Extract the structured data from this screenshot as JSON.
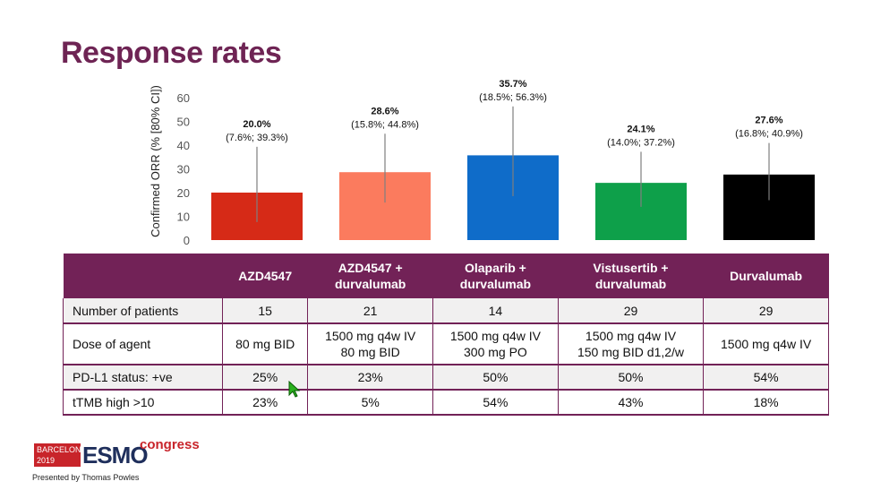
{
  "slide": {
    "title": "Response rates",
    "presenter": "Presented by Thomas Powles"
  },
  "logo": {
    "city": "BARCELONA",
    "year": "2019",
    "brand": "ESMO",
    "event": "congress"
  },
  "chart_data": {
    "type": "bar",
    "ylabel": "Confirmed ORR (% [80% CI])",
    "ylim": [
      0,
      60
    ],
    "yticks": [
      0,
      10,
      20,
      30,
      40,
      50,
      60
    ],
    "grid": false,
    "categories": [
      "AZD4547",
      "AZD4547 + durvalumab",
      "Olaparib + durvalumab",
      "Vistusertib + durvalumab",
      "Durvalumab"
    ],
    "values": [
      20.0,
      28.6,
      35.7,
      24.1,
      27.6
    ],
    "ci_low": [
      7.6,
      15.8,
      18.5,
      14.0,
      16.8
    ],
    "ci_high": [
      39.3,
      44.8,
      56.3,
      37.2,
      40.9
    ],
    "data_labels": [
      "20.0%",
      "28.6%",
      "35.7%",
      "24.1%",
      "27.6%"
    ],
    "ci_labels": [
      "(7.6%; 39.3%)",
      "(15.8%; 44.8%)",
      "(18.5%; 56.3%)",
      "(14.0%; 37.2%)",
      "(16.8%; 40.9%)"
    ],
    "colors": [
      "#d62a17",
      "#fb7b5e",
      "#0f6cc9",
      "#0ea04a",
      "#000000"
    ]
  },
  "table": {
    "headers": [
      "",
      "AZD4547",
      "AZD4547 +\ndurvalumab",
      "Olaparib +\ndurvalumab",
      "Vistusertib +\ndurvalumab",
      "Durvalumab"
    ],
    "rows": [
      {
        "label": "Number of patients",
        "cells": [
          "15",
          "21",
          "14",
          "29",
          "29"
        ]
      },
      {
        "label": "Dose of agent",
        "cells": [
          "80 mg BID",
          "1500 mg q4w IV\n80 mg BID",
          "1500 mg q4w IV\n300 mg PO",
          "1500 mg q4w IV\n150 mg BID d1,2/w",
          "1500 mg q4w IV"
        ]
      },
      {
        "label": "PD-L1 status: +ve",
        "cells": [
          "25%",
          "23%",
          "50%",
          "50%",
          "54%"
        ]
      },
      {
        "label": "tTMB high >10",
        "cells": [
          "23%",
          "5%",
          "54%",
          "43%",
          "18%"
        ]
      }
    ]
  }
}
